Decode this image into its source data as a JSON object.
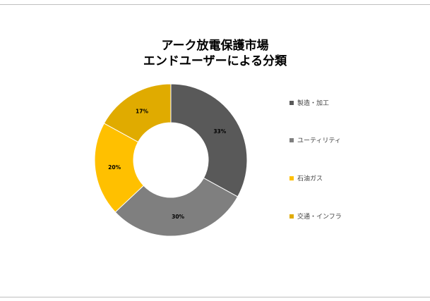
{
  "chart_data": {
    "type": "pie",
    "title_lines": [
      "アーク放電保護市場",
      "エンドユーザーによる分類"
    ],
    "categories": [
      "製造・加工",
      "ユーティリティ",
      "石油ガス",
      "交通・インフラ"
    ],
    "values": [
      33,
      30,
      20,
      17
    ],
    "labels": [
      "33%",
      "30%",
      "20%",
      "17%"
    ],
    "colors": [
      "#595959",
      "#7f7f7f",
      "#ffc000",
      "#e0ab00"
    ],
    "legend_position": "right",
    "donut": true
  }
}
